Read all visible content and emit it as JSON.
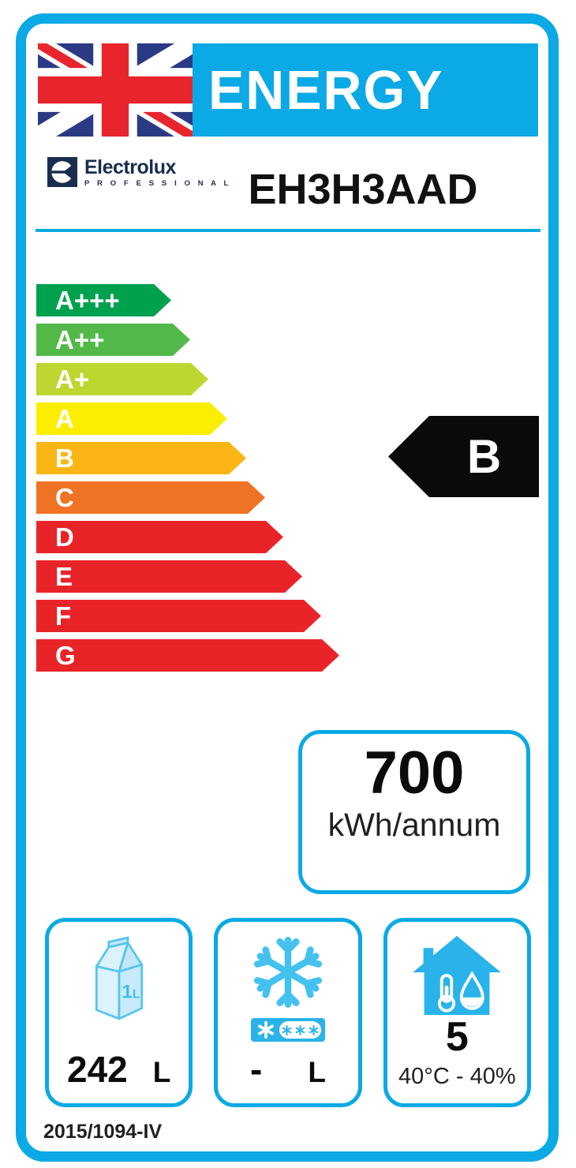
{
  "header": {
    "title": "ENERGY"
  },
  "brand": {
    "name": "Electrolux",
    "sub": "P R O F E S S I O N A L",
    "model": "EH3H3AAD"
  },
  "scale": {
    "ratings": [
      {
        "label": "A+++",
        "color": "#00A14E"
      },
      {
        "label": "A++",
        "color": "#52B948"
      },
      {
        "label": "A+",
        "color": "#BED630"
      },
      {
        "label": "A",
        "color": "#FBEE00"
      },
      {
        "label": "B",
        "color": "#FBB615"
      },
      {
        "label": "C",
        "color": "#EF7324"
      },
      {
        "label": "D",
        "color": "#E92429"
      },
      {
        "label": "E",
        "color": "#E92429"
      },
      {
        "label": "F",
        "color": "#E92429"
      },
      {
        "label": "G",
        "color": "#E92429"
      }
    ]
  },
  "rating": {
    "grade": "B"
  },
  "energy": {
    "value": "700",
    "unit": "kWh/annum"
  },
  "boxes": {
    "fridge": {
      "value": "242",
      "unit": "L",
      "carton_value": "1",
      "carton_unit": "L"
    },
    "freezer": {
      "value": "-",
      "unit": "L"
    },
    "climate": {
      "value": "5",
      "condition": "40°C - 40%"
    }
  },
  "footer": {
    "regulation": "2015/1094-IV"
  },
  "icons": {
    "flag": "uk-flag",
    "brand_mark": "electrolux-circle-mark",
    "fridge": "milk-carton",
    "freezer": "snowflake",
    "freezer_rating": "four-star-freezer-rating",
    "climate": "house-with-thermometer-and-droplet"
  },
  "colors": {
    "cyan": "#0BA9E6",
    "iconCyan": "#29B3EA",
    "flakeCyan": "#45C1F0",
    "milkStroke": "#56C4F0",
    "milkLight": "#DCF2FC",
    "milkMid": "#C2E8F8",
    "milkText": "#41BCEE",
    "navy": "#1B2D4F",
    "flagNavy": "#2B3A85",
    "flagRed": "#E8242C",
    "black": "#0A0A0A"
  }
}
